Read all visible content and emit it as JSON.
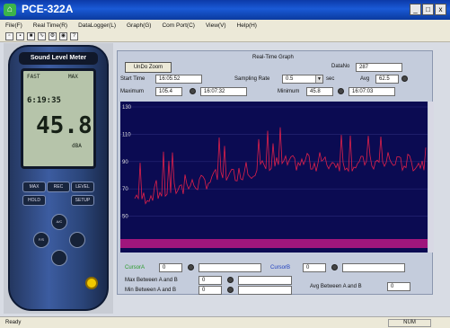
{
  "window": {
    "title": "PCE-322A",
    "min_label": "_",
    "max_label": "□",
    "close_label": "x"
  },
  "menu": [
    "File(F)",
    "Real Time(R)",
    "DataLogger(L)",
    "Graph(G)",
    "Com Port(C)",
    "View(V)",
    "Help(H)"
  ],
  "toolbar_icons": [
    "new-icon",
    "open-icon",
    "save-icon",
    "chart-icon",
    "gear-icon",
    "settings-icon",
    "help-icon"
  ],
  "meter": {
    "brand": "Sound Level Meter",
    "lcd_top": "FAST",
    "lcd_time": "6:19:35",
    "lcd_value": "45.8",
    "lcd_unit": "dBA",
    "lcd_small": "MAX",
    "buttons": [
      "MAX",
      "REC",
      "LEVEL",
      "HOLD",
      "SETUP",
      "A/C",
      "F/S"
    ]
  },
  "graph_panel": {
    "title": "Real-Time Graph",
    "unzoom_label": "UnDo Zoom",
    "datano_label": "DataNo",
    "datano_value": "287",
    "start_label": "Start Time",
    "start_value": "16:05:52",
    "rate_label": "Sampling Rate",
    "rate_value": "0.5",
    "rate_unit": "sec",
    "avg_label": "Avg",
    "avg_value": "62.5",
    "max_label": "Maximum",
    "max_value": "105.4",
    "max_time": "16:07:32",
    "min_label": "Minimum",
    "min_value": "45.8",
    "min_time": "16:07:03",
    "y_ticks": [
      "130",
      "110",
      "90",
      "70",
      "50",
      "30"
    ],
    "cursor_a_label": "CursorA",
    "cursor_a_value": "0",
    "cursor_b_label": "CursorB",
    "cursor_b_value": "0",
    "max_between_label": "Max Between A and B",
    "max_between_value": "0",
    "min_between_label": "Min Between A and B",
    "min_between_value": "0",
    "avg_between_label": "Avg Between A and B",
    "avg_between_value": "0"
  },
  "status": {
    "left": "Ready",
    "right": "NUM"
  },
  "colors": {
    "graph_bg": "#0b0b52",
    "trace": "#e0204a",
    "strip": "#a0167c",
    "titlebar": "#1a5ad6"
  }
}
